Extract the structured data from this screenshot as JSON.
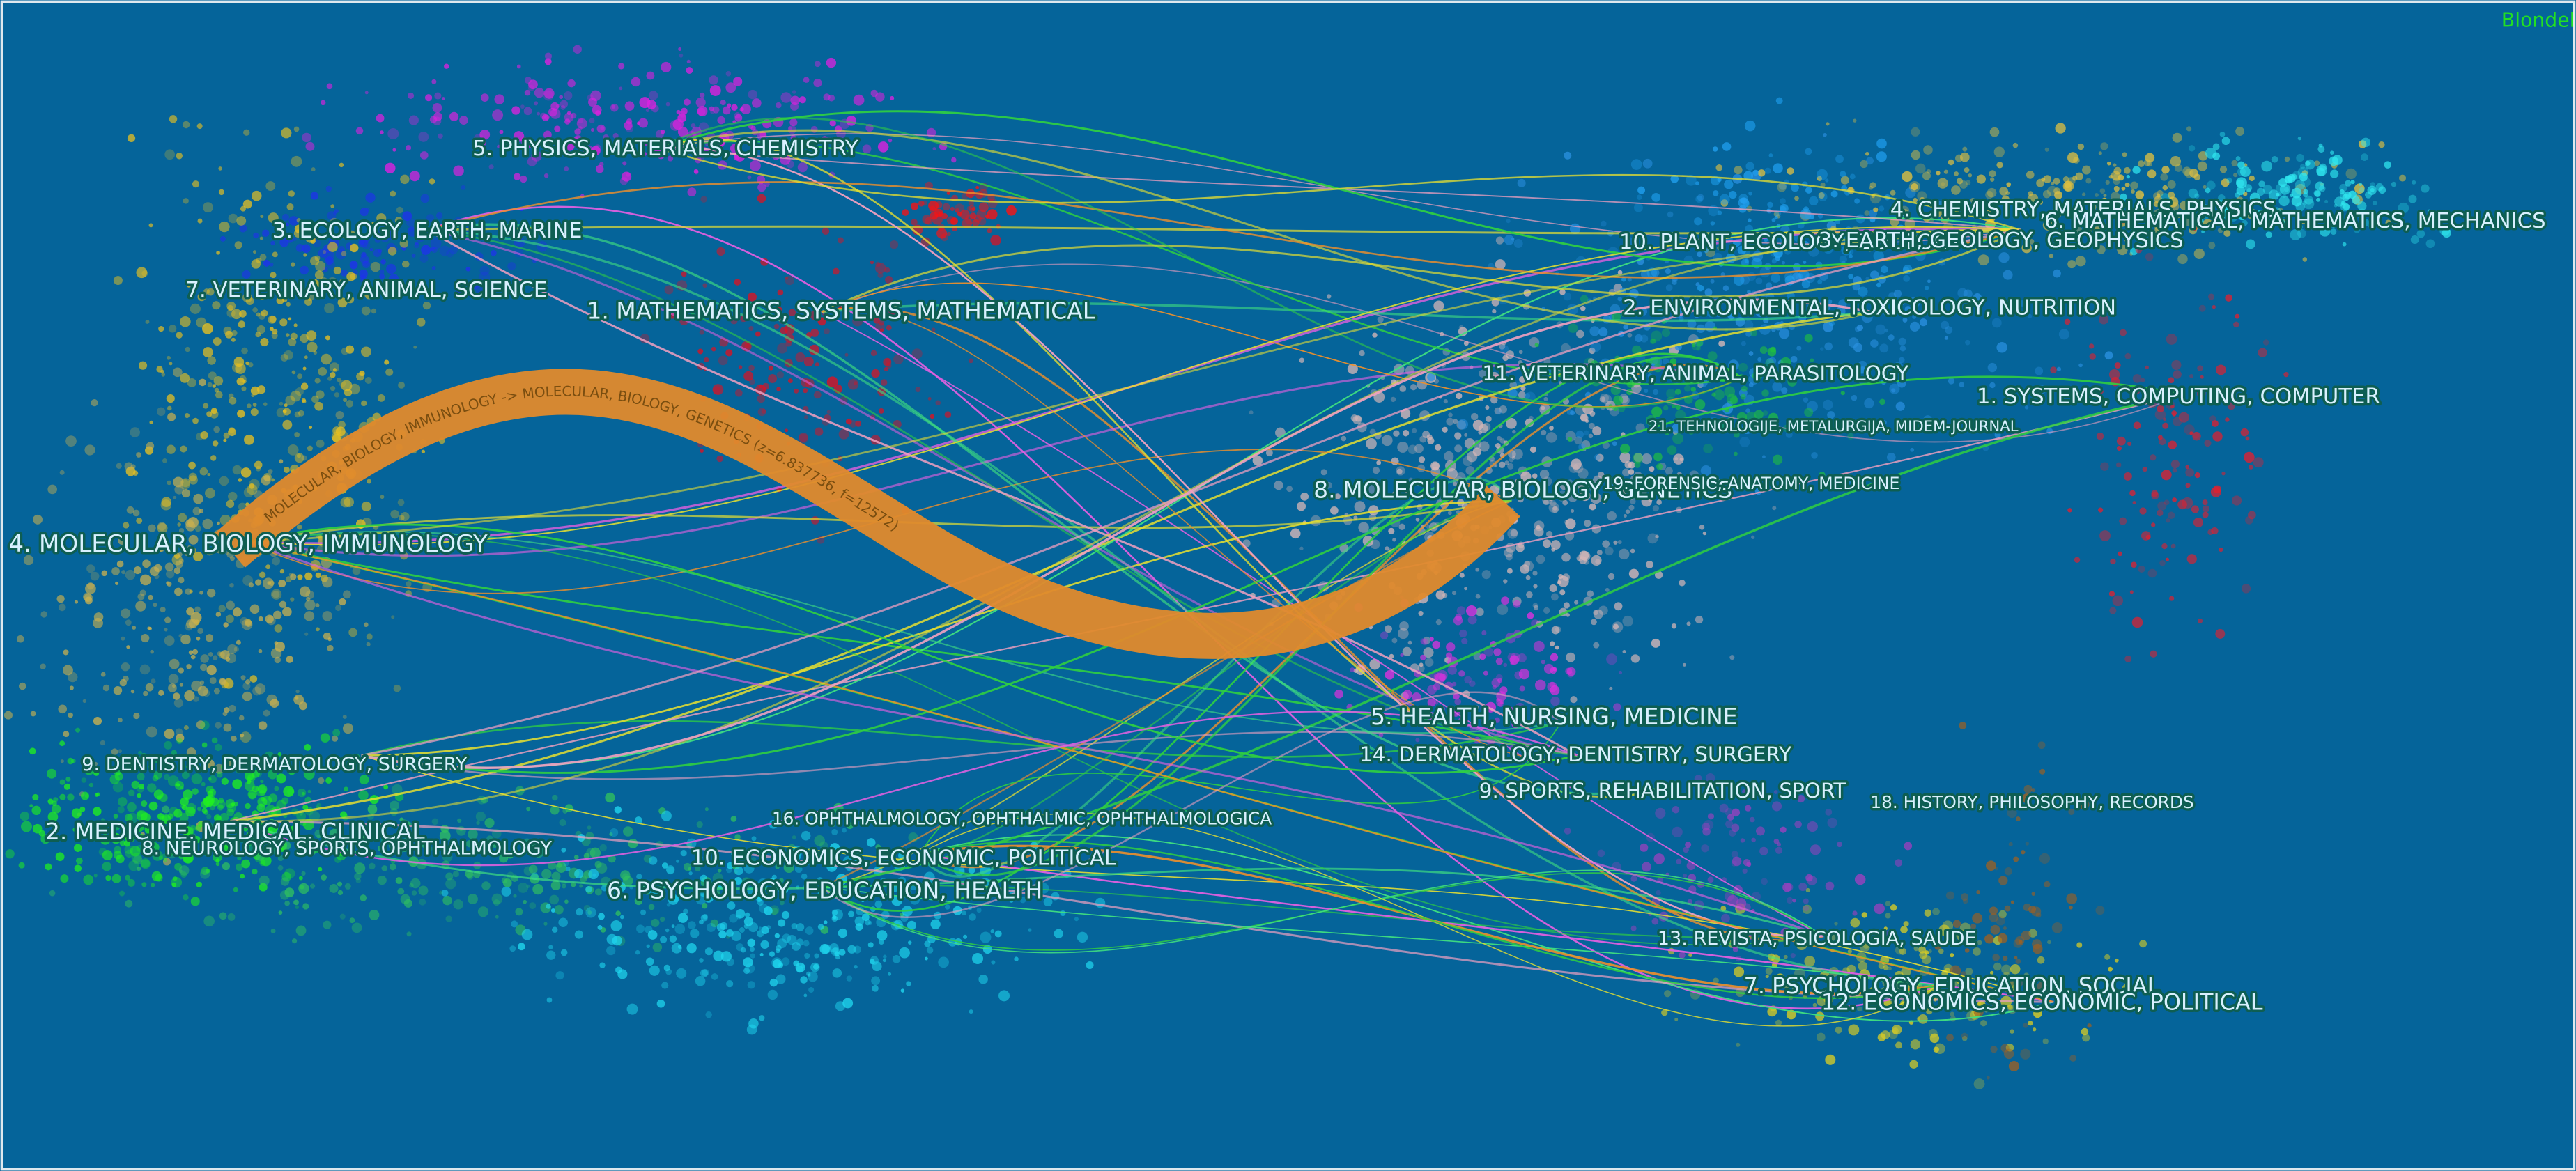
{
  "watermark": "Blondel",
  "main_link": {
    "label": "MOLECULAR, BIOLOGY, IMMUNOLOGY -> MOLECULAR, BIOLOGY, GENETICS (z=6.837736, f=12572)"
  },
  "left_clusters": [
    "5. PHYSICS, MATERIALS, CHEMISTRY",
    "3. ECOLOGY, EARTH, MARINE",
    "7. VETERINARY, ANIMAL, SCIENCE",
    "1. MATHEMATICS, SYSTEMS, MATHEMATICAL",
    "4. MOLECULAR, BIOLOGY, IMMUNOLOGY",
    "9. DENTISTRY, DERMATOLOGY, SURGERY",
    "2. MEDICINE, MEDICAL, CLINICAL",
    "8. NEUROLOGY, SPORTS, OPHTHALMOLOGY",
    "16. OPHTHALMOLOGY, OPHTHALMIC, OPHTHALMOLOGICA",
    "10. ECONOMICS, ECONOMIC, POLITICAL",
    "6. PSYCHOLOGY, EDUCATION, HEALTH"
  ],
  "right_clusters": [
    "4. CHEMISTRY, MATERIALS, PHYSICS",
    "6. MATHEMATICAL, MATHEMATICS, MECHANICS",
    "10. PLANT, ECOLOGY, ZOOLOGY",
    "3. EARTH, GEOLOGY, GEOPHYSICS",
    "2. ENVIRONMENTAL, TOXICOLOGY, NUTRITION",
    "11. VETERINARY, ANIMAL, PARASITOLOGY",
    "1. SYSTEMS, COMPUTING, COMPUTER",
    "21. TEHNOLOGIJE, METALURGIJA, MIDEM-JOURNAL",
    "8. MOLECULAR, BIOLOGY, GENETICS",
    "19. FORENSIC, ANATOMY, MEDICINE",
    "5. HEALTH, NURSING, MEDICINE",
    "14. DERMATOLOGY, DENTISTRY, SURGERY",
    "9. SPORTS, REHABILITATION, SPORT",
    "18. HISTORY, PHILOSOPHY, RECORDS",
    "13. REVISTA, PSICOLOGIA, SAUDE",
    "7. PSYCHOLOGY, EDUCATION, SOCIAL",
    "12. ECONOMICS, ECONOMIC, POLITICAL"
  ]
}
